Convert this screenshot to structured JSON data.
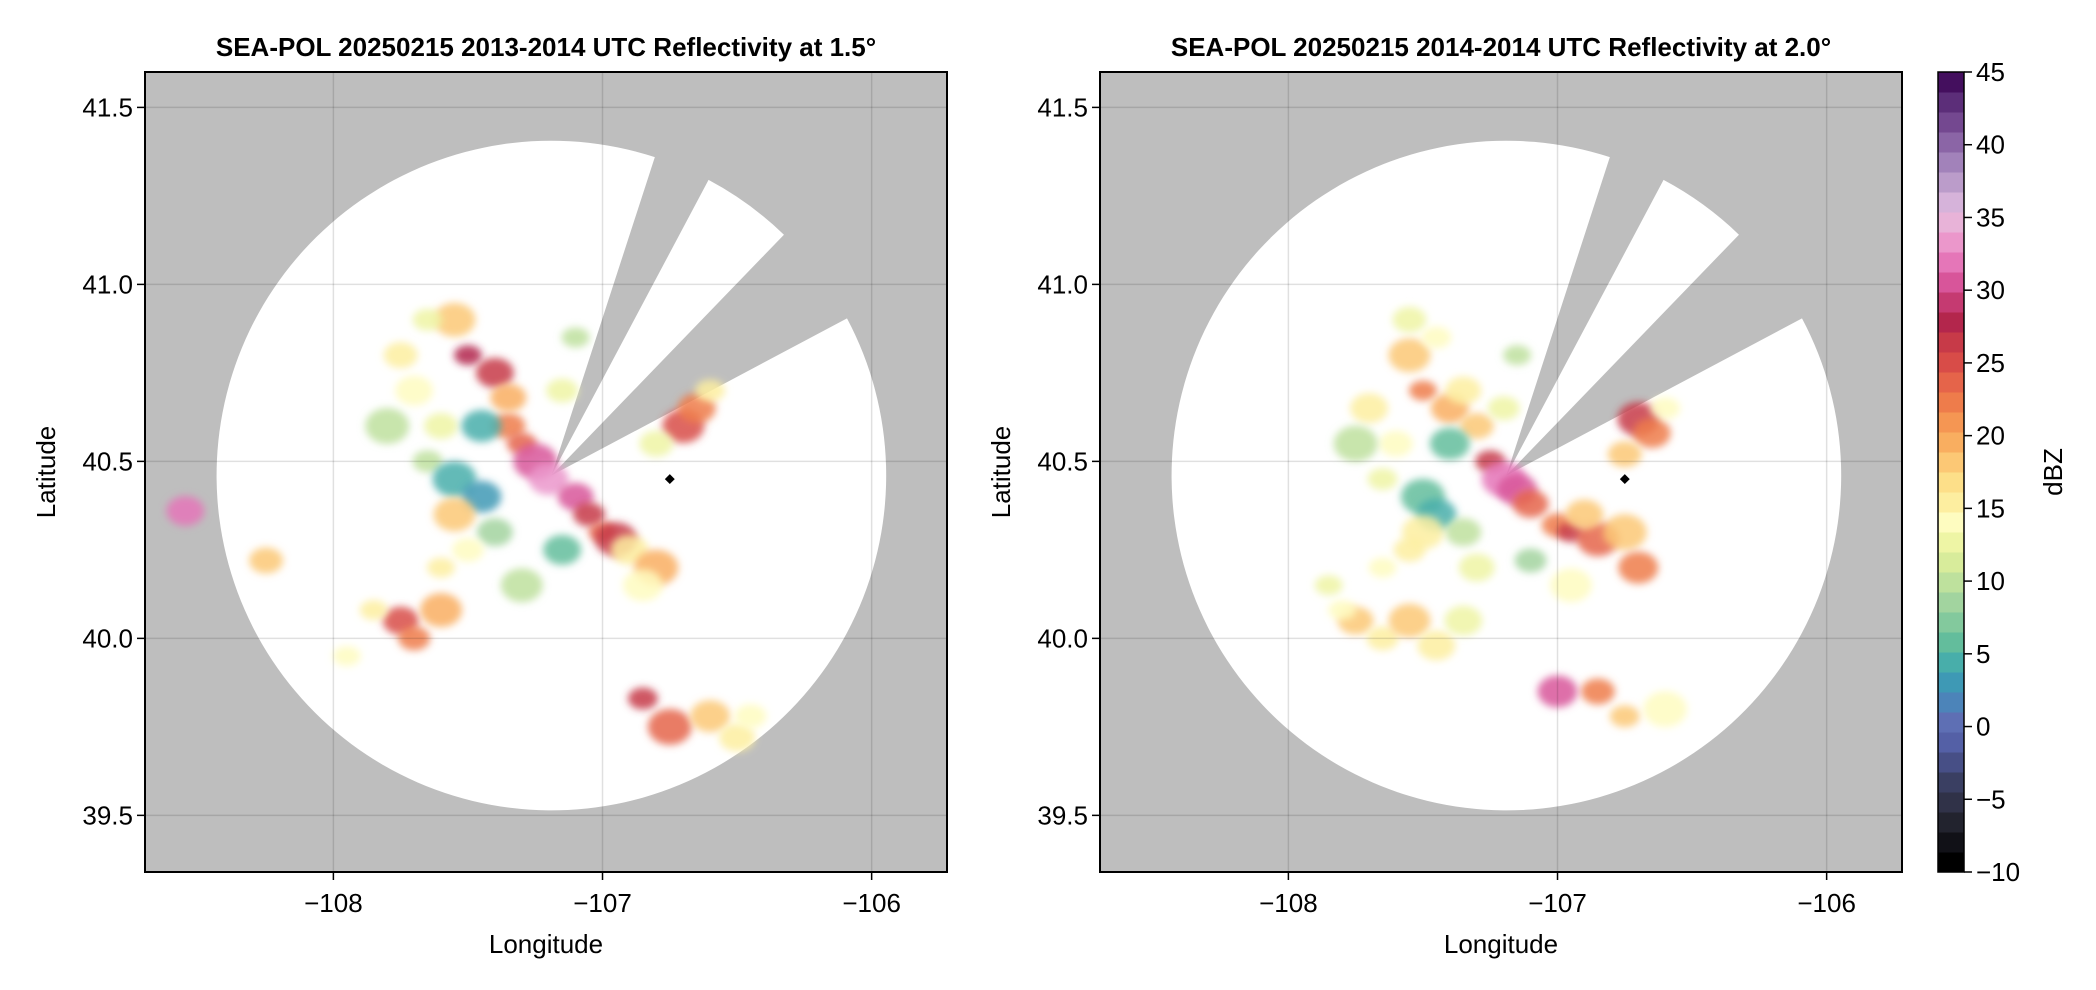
{
  "chart_data": [
    {
      "type": "heatmap",
      "title": "SEA-POL 20250215 2013-2014 UTC Reflectivity at 1.5°",
      "xlabel": "Longitude",
      "ylabel": "Latitude",
      "xlim": [
        -108.7,
        -105.72
      ],
      "ylim": [
        39.34,
        41.6
      ],
      "xticks": [
        -108,
        -107,
        -106
      ],
      "xtick_labels": [
        "−108",
        "−107",
        "−106"
      ],
      "yticks": [
        39.5,
        40.0,
        40.5,
        41.0,
        41.5
      ],
      "ytick_labels": [
        "39.5",
        "40.0",
        "40.5",
        "41.0",
        "41.5"
      ],
      "grid": true,
      "no_data_color": "#bebebe",
      "radar_center": [
        -107.19,
        40.46
      ],
      "marker": [
        -106.75,
        40.45
      ],
      "echo_cells": [
        [
          -107.5,
          40.8,
          28
        ],
        [
          -107.55,
          40.9,
          18
        ],
        [
          -107.4,
          40.75,
          26
        ],
        [
          -107.35,
          40.6,
          22
        ],
        [
          -107.3,
          40.55,
          24
        ],
        [
          -107.25,
          40.5,
          30
        ],
        [
          -107.2,
          40.45,
          33
        ],
        [
          -107.1,
          40.4,
          30
        ],
        [
          -107.05,
          40.35,
          26
        ],
        [
          -107.0,
          40.3,
          24
        ],
        [
          -106.95,
          40.28,
          27
        ],
        [
          -106.9,
          40.25,
          15
        ],
        [
          -107.6,
          40.6,
          12
        ],
        [
          -107.65,
          40.5,
          10
        ],
        [
          -107.55,
          40.45,
          5
        ],
        [
          -107.45,
          40.4,
          3
        ],
        [
          -107.4,
          40.3,
          8
        ],
        [
          -107.5,
          40.25,
          14
        ],
        [
          -107.6,
          40.2,
          16
        ],
        [
          -107.55,
          40.35,
          18
        ],
        [
          -107.7,
          40.7,
          14
        ],
        [
          -107.75,
          40.8,
          16
        ],
        [
          -107.65,
          40.9,
          12
        ],
        [
          -107.8,
          40.6,
          10
        ],
        [
          -107.45,
          40.6,
          4
        ],
        [
          -107.35,
          40.68,
          20
        ],
        [
          -107.15,
          40.7,
          12
        ],
        [
          -107.1,
          40.85,
          10
        ],
        [
          -106.7,
          40.6,
          25
        ],
        [
          -106.65,
          40.65,
          22
        ],
        [
          -106.8,
          40.55,
          12
        ],
        [
          -106.6,
          40.7,
          16
        ],
        [
          -106.8,
          40.2,
          20
        ],
        [
          -106.85,
          40.15,
          14
        ],
        [
          -107.75,
          40.05,
          25
        ],
        [
          -107.7,
          40.0,
          22
        ],
        [
          -107.85,
          40.08,
          16
        ],
        [
          -107.6,
          40.08,
          20
        ],
        [
          -108.55,
          40.36,
          32
        ],
        [
          -108.25,
          40.22,
          18
        ],
        [
          -106.85,
          39.83,
          26
        ],
        [
          -106.75,
          39.75,
          24
        ],
        [
          -106.6,
          39.78,
          18
        ],
        [
          -106.5,
          39.72,
          16
        ],
        [
          -106.45,
          39.78,
          14
        ],
        [
          -107.95,
          39.95,
          14
        ],
        [
          -107.3,
          40.15,
          10
        ],
        [
          -107.15,
          40.25,
          6
        ]
      ]
    },
    {
      "type": "heatmap",
      "title": "SEA-POL 20250215 2014-2014 UTC Reflectivity at 2.0°",
      "xlabel": "Longitude",
      "ylabel": "Latitude",
      "xlim": [
        -108.7,
        -105.72
      ],
      "ylim": [
        39.34,
        41.6
      ],
      "xticks": [
        -108,
        -107,
        -106
      ],
      "xtick_labels": [
        "−108",
        "−107",
        "−106"
      ],
      "yticks": [
        39.5,
        40.0,
        40.5,
        41.0,
        41.5
      ],
      "ytick_labels": [
        "39.5",
        "40.0",
        "40.5",
        "41.0",
        "41.5"
      ],
      "grid": true,
      "no_data_color": "#bebebe",
      "radar_center": [
        -107.19,
        40.46
      ],
      "marker": [
        -106.75,
        40.45
      ],
      "echo_cells": [
        [
          -107.5,
          40.7,
          22
        ],
        [
          -107.55,
          40.8,
          18
        ],
        [
          -107.4,
          40.65,
          20
        ],
        [
          -107.3,
          40.6,
          18
        ],
        [
          -107.25,
          40.5,
          26
        ],
        [
          -107.2,
          40.45,
          32
        ],
        [
          -107.15,
          40.42,
          30
        ],
        [
          -107.1,
          40.38,
          24
        ],
        [
          -107.0,
          40.32,
          22
        ],
        [
          -106.95,
          40.3,
          26
        ],
        [
          -106.85,
          40.28,
          24
        ],
        [
          -106.9,
          40.35,
          18
        ],
        [
          -107.6,
          40.55,
          14
        ],
        [
          -107.65,
          40.45,
          12
        ],
        [
          -107.5,
          40.4,
          6
        ],
        [
          -107.45,
          40.35,
          4
        ],
        [
          -107.35,
          40.3,
          10
        ],
        [
          -107.55,
          40.25,
          15
        ],
        [
          -107.65,
          40.2,
          14
        ],
        [
          -107.5,
          40.3,
          16
        ],
        [
          -107.7,
          40.65,
          16
        ],
        [
          -107.55,
          40.9,
          12
        ],
        [
          -107.45,
          40.85,
          14
        ],
        [
          -107.75,
          40.55,
          10
        ],
        [
          -107.4,
          40.55,
          6
        ],
        [
          -107.35,
          40.7,
          16
        ],
        [
          -107.2,
          40.65,
          12
        ],
        [
          -107.15,
          40.8,
          10
        ],
        [
          -106.7,
          40.62,
          26
        ],
        [
          -106.65,
          40.58,
          22
        ],
        [
          -106.75,
          40.52,
          18
        ],
        [
          -106.6,
          40.65,
          14
        ],
        [
          -106.75,
          40.3,
          18
        ],
        [
          -106.7,
          40.2,
          22
        ],
        [
          -107.75,
          40.05,
          18
        ],
        [
          -107.65,
          40.0,
          16
        ],
        [
          -107.8,
          40.08,
          14
        ],
        [
          -107.55,
          40.05,
          18
        ],
        [
          -107.45,
          39.98,
          16
        ],
        [
          -106.85,
          39.85,
          22
        ],
        [
          -106.75,
          39.78,
          18
        ],
        [
          -106.6,
          39.8,
          14
        ],
        [
          -107.0,
          39.85,
          30
        ],
        [
          -107.3,
          40.2,
          12
        ],
        [
          -107.1,
          40.22,
          8
        ],
        [
          -107.85,
          40.15,
          12
        ],
        [
          -106.95,
          40.15,
          14
        ],
        [
          -107.35,
          40.05,
          12
        ]
      ]
    }
  ],
  "colorbar": {
    "label": "dBZ",
    "min": -10,
    "max": 45,
    "ticks": [
      -10,
      -5,
      0,
      5,
      10,
      15,
      20,
      25,
      30,
      35,
      40,
      45
    ],
    "tick_labels": [
      "−10",
      "−5",
      "0",
      "5",
      "10",
      "15",
      "20",
      "25",
      "30",
      "35",
      "40",
      "45"
    ],
    "colors": [
      "#000000",
      "#111117",
      "#22232e",
      "#303248",
      "#3a3f62",
      "#474f86",
      "#5460a6",
      "#5e6fb4",
      "#4c84b9",
      "#3e99b5",
      "#48aeaa",
      "#63bd9c",
      "#83c99d",
      "#a2d49f",
      "#bee19d",
      "#d8ec9b",
      "#eef5a5",
      "#fefcc0",
      "#fdeea0",
      "#fddf89",
      "#fcc875",
      "#f9ae60",
      "#f59653",
      "#ee7c4b",
      "#e5644a",
      "#d84c48",
      "#c73a48",
      "#b3264c",
      "#c53a71",
      "#d8559a",
      "#e576b8",
      "#eb97cb",
      "#e8b3d8",
      "#d6b3da",
      "#bb9cca",
      "#a282ba",
      "#8b65a6",
      "#744890",
      "#5c2e79",
      "#440f5e"
    ]
  }
}
